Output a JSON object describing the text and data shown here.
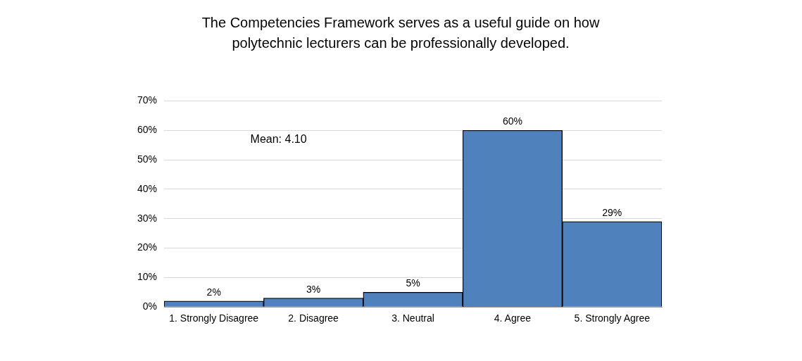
{
  "chart_data": {
    "type": "bar",
    "title": "The Competencies Framework serves as a useful guide on how polytechnic lecturers can be professionally developed.",
    "categories": [
      "1. Strongly Disagree",
      "2. Disagree",
      "3. Neutral",
      "4. Agree",
      "5. Strongly Agree"
    ],
    "values": [
      2,
      3,
      5,
      60,
      29
    ],
    "value_labels": [
      "2%",
      "3%",
      "5%",
      "60%",
      "29%"
    ],
    "color": "#4f81bd",
    "ylim": [
      0,
      70
    ],
    "yticks": [
      {
        "value": 0,
        "label": "0%"
      },
      {
        "value": 10,
        "label": "10%"
      },
      {
        "value": 20,
        "label": "20%"
      },
      {
        "value": 30,
        "label": "30%"
      },
      {
        "value": 40,
        "label": "40%"
      },
      {
        "value": 50,
        "label": "50%"
      },
      {
        "value": 60,
        "label": "60%"
      },
      {
        "value": 70,
        "label": "70%"
      }
    ],
    "grid": "y",
    "legend": false,
    "annotations": [
      "Mean: 4.10"
    ]
  }
}
